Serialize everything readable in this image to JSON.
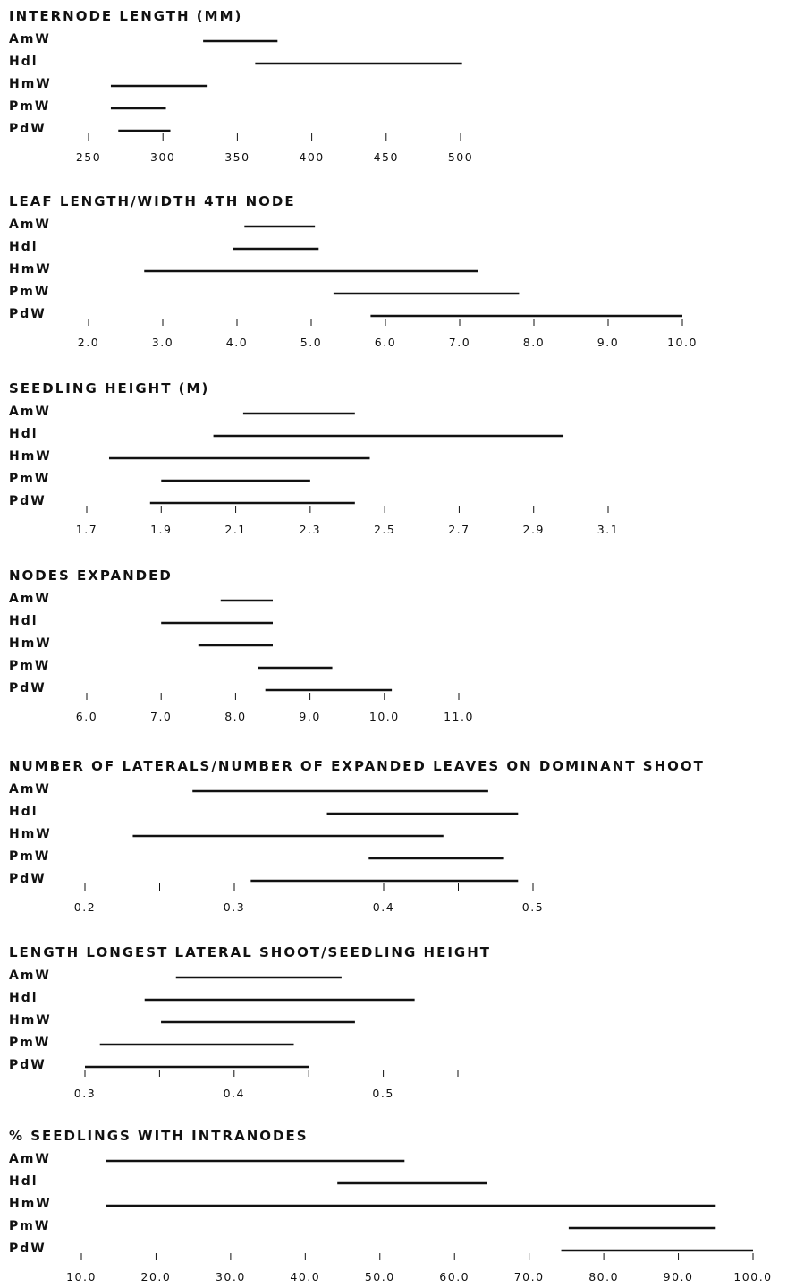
{
  "colors": {
    "ink": "#111111",
    "background": "#ffffff"
  },
  "chart_data": [
    {
      "type": "range",
      "title": "INTERNODE LENGTH (MM)",
      "categories": [
        "AmW",
        "Hdl",
        "HmW",
        "PmW",
        "PdW"
      ],
      "ranges": [
        [
          327,
          377
        ],
        [
          362,
          501
        ],
        [
          265,
          330
        ],
        [
          265,
          302
        ],
        [
          270,
          305
        ]
      ],
      "ticks": [
        250,
        300,
        350,
        400,
        450,
        500
      ],
      "tick_labels": [
        "250",
        "300",
        "350",
        "400",
        "450",
        "500"
      ],
      "xlim": [
        250,
        500
      ]
    },
    {
      "type": "range",
      "title": "LEAF LENGTH/WIDTH 4TH NODE",
      "categories": [
        "AmW",
        "Hdl",
        "HmW",
        "PmW",
        "PdW"
      ],
      "ranges": [
        [
          4.1,
          5.05
        ],
        [
          3.95,
          5.1
        ],
        [
          2.75,
          7.25
        ],
        [
          5.3,
          7.8
        ],
        [
          5.8,
          10.0
        ]
      ],
      "ticks": [
        2,
        3,
        4,
        5,
        6,
        7,
        8,
        9,
        10
      ],
      "tick_labels": [
        "2.0",
        "3.0",
        "4.0",
        "5.0",
        "6.0",
        "7.0",
        "8.0",
        "9.0",
        "10.0"
      ],
      "xlim": [
        2,
        10
      ]
    },
    {
      "type": "range",
      "title": "SEEDLING HEIGHT (M)",
      "categories": [
        "AmW",
        "Hdl",
        "HmW",
        "PmW",
        "PdW"
      ],
      "ranges": [
        [
          2.12,
          2.42
        ],
        [
          2.04,
          2.98
        ],
        [
          1.76,
          2.46
        ],
        [
          1.9,
          2.3
        ],
        [
          1.87,
          2.42
        ]
      ],
      "ticks": [
        1.7,
        1.9,
        2.1,
        2.3,
        2.5,
        2.7,
        2.9,
        3.1
      ],
      "tick_labels": [
        "1.7",
        "1.9",
        "2.1",
        "2.3",
        "2.5",
        "2.7",
        "2.9",
        "3.1"
      ],
      "xlim": [
        1.7,
        3.1
      ]
    },
    {
      "type": "range",
      "title": "NODES EXPANDED",
      "categories": [
        "AmW",
        "Hdl",
        "HmW",
        "PmW",
        "PdW"
      ],
      "ranges": [
        [
          7.8,
          8.5
        ],
        [
          7.0,
          8.5
        ],
        [
          7.5,
          8.5
        ],
        [
          8.3,
          9.3
        ],
        [
          8.4,
          10.1
        ]
      ],
      "ticks": [
        6,
        7,
        8,
        9,
        10,
        11
      ],
      "tick_labels": [
        "6.0",
        "7.0",
        "8.0",
        "9.0",
        "10.0",
        "11.0"
      ],
      "xlim": [
        6,
        11
      ]
    },
    {
      "type": "range",
      "title": "NUMBER OF LATERALS/NUMBER OF EXPANDED LEAVES ON DOMINANT SHOOT",
      "categories": [
        "AmW",
        "Hdl",
        "HmW",
        "PmW",
        "PdW"
      ],
      "ranges": [
        [
          0.272,
          0.47
        ],
        [
          0.362,
          0.49
        ],
        [
          0.232,
          0.44
        ],
        [
          0.39,
          0.48
        ],
        [
          0.311,
          0.49
        ]
      ],
      "ticks": [
        0.2,
        0.25,
        0.3,
        0.35,
        0.4,
        0.45,
        0.5
      ],
      "tick_labels": [
        "0.2",
        "",
        "0.3",
        "",
        "0.4",
        "",
        "0.5"
      ],
      "xlim": [
        0.2,
        0.5
      ]
    },
    {
      "type": "range",
      "title": "LENGTH LONGEST LATERAL SHOOT/SEEDLING HEIGHT",
      "categories": [
        "AmW",
        "Hdl",
        "HmW",
        "PmW",
        "PdW"
      ],
      "ranges": [
        [
          0.361,
          0.472
        ],
        [
          0.34,
          0.521
        ],
        [
          0.351,
          0.481
        ],
        [
          0.31,
          0.44
        ],
        [
          0.3,
          0.45
        ]
      ],
      "ticks": [
        0.3,
        0.35,
        0.4,
        0.45,
        0.5,
        0.55
      ],
      "tick_labels": [
        "0.3",
        "",
        "0.4",
        "",
        "0.5",
        ""
      ],
      "xlim": [
        0.3,
        0.55
      ]
    },
    {
      "type": "range",
      "title": "% SEEDLINGS WITH INTRANODES",
      "categories": [
        "AmW",
        "Hdl",
        "HmW",
        "PmW",
        "PdW"
      ],
      "ranges": [
        [
          13.3,
          53.3
        ],
        [
          44.3,
          64.3
        ],
        [
          13.3,
          95.0
        ],
        [
          75.3,
          95.0
        ],
        [
          74.3,
          100.0
        ]
      ],
      "ticks": [
        10,
        20,
        30,
        40,
        50,
        60,
        70,
        80,
        90,
        100
      ],
      "tick_labels": [
        "10.0",
        "20.0",
        "30.0",
        "40.0",
        "50.0",
        "60.0",
        "70.0",
        "80.0",
        "90.0",
        "100.0"
      ],
      "xlim": [
        10,
        100
      ]
    }
  ]
}
